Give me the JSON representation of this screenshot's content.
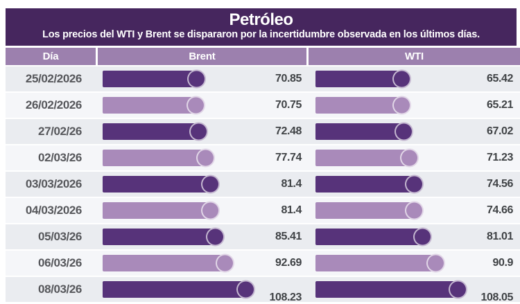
{
  "title": "Petróleo",
  "subtitle": "Los precios del WTI y Brent se dispararon por la incertidumbre observada en los últimos días.",
  "columns": [
    "Día",
    "Brent",
    "WTI"
  ],
  "colors": {
    "header_bg": "#46265e",
    "table_header_bg": "#9c80ae",
    "bar_dark": "#57337a",
    "bar_light": "#a98aba",
    "row_bg_odd": "#eaecf0",
    "row_bg_even": "#f5f6f9",
    "date_text": "#56575b",
    "value_text": "#3f4245"
  },
  "chart_data": {
    "type": "bar",
    "orientation": "horizontal",
    "title": "Petróleo",
    "subtitle": "Los precios del WTI y Brent se dispararon por la incertidumbre observada en los últimos días.",
    "categories": [
      "25/02/2026",
      "26/02/2026",
      "27/02/26",
      "02/03/26",
      "03/03/2026",
      "04/03/2026",
      "05/03/26",
      "06/03/26",
      "08/03/26"
    ],
    "series": [
      {
        "name": "Brent",
        "values": [
          70.85,
          70.75,
          72.48,
          77.74,
          81.4,
          81.4,
          85.41,
          92.69,
          108.23
        ]
      },
      {
        "name": "WTI",
        "values": [
          65.42,
          65.21,
          67.02,
          71.23,
          74.56,
          74.66,
          81.01,
          90.9,
          108.05
        ]
      }
    ],
    "value_labels_shown": true,
    "xlim": [
      0,
      110
    ],
    "legend_position": "column-headers",
    "grid": false,
    "bar_style": "alternating dark/light purple with circle cap at bar end"
  }
}
